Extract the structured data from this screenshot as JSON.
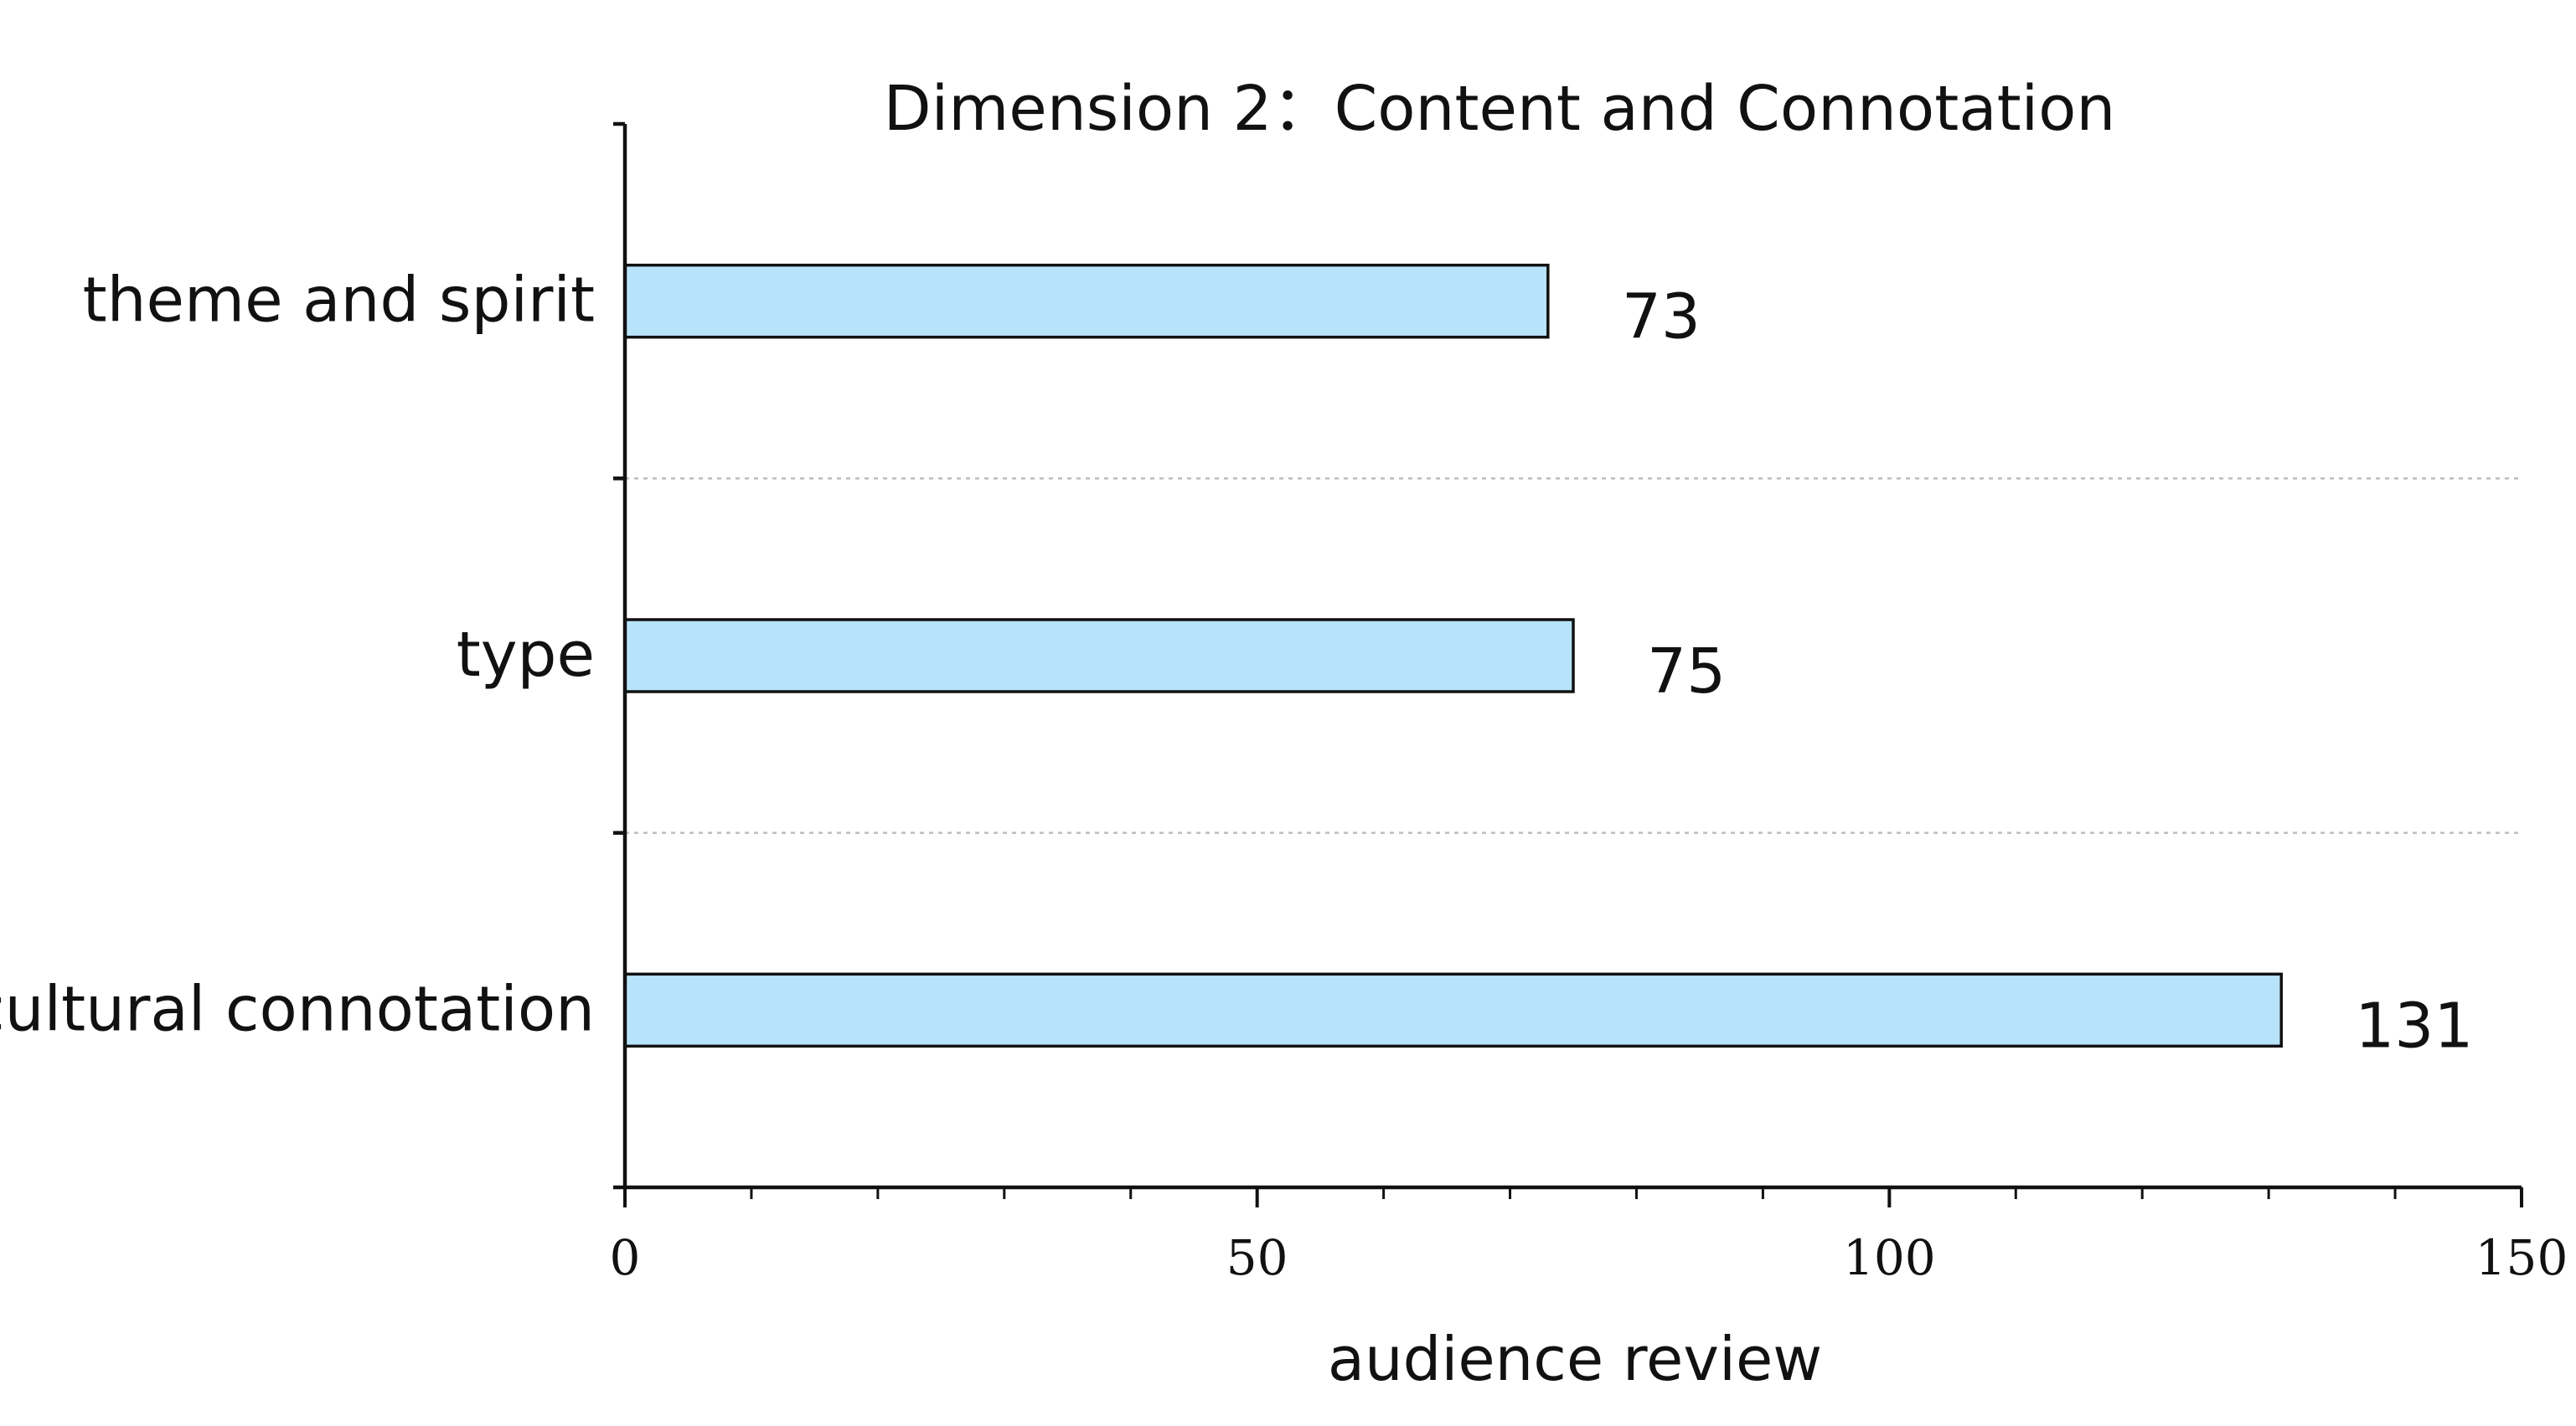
{
  "chart_data": {
    "type": "bar",
    "orientation": "horizontal",
    "title": "Dimension 2：Content and Connotation",
    "categories": [
      "theme and spirit",
      "type",
      "cultural connotation"
    ],
    "values": [
      73,
      75,
      131
    ],
    "value_labels": [
      "73",
      "75",
      "131"
    ],
    "xlabel": "audience review",
    "ylabel": "",
    "xlim": [
      0,
      150
    ],
    "x_ticks": [
      0,
      50,
      100,
      150
    ],
    "x_tick_labels": [
      "0",
      "50",
      "100",
      "150"
    ],
    "x_minor_step": 10,
    "grid": "horizontal dotted between categories",
    "bar_color": "#b8e4fb",
    "bar_edge_color": "#111111",
    "grid_color": "#bdbdbd"
  }
}
